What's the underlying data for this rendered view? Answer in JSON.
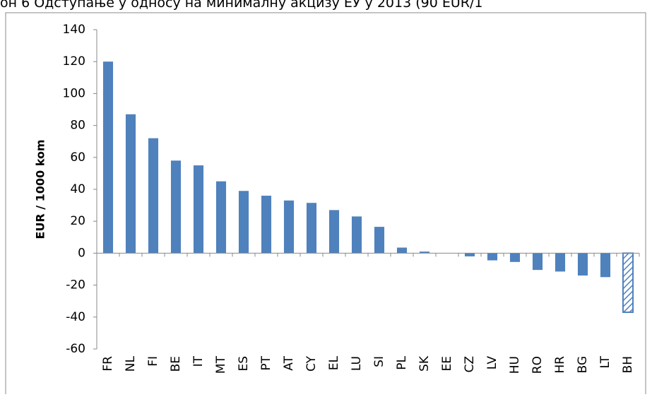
{
  "chart_data": {
    "type": "bar",
    "title": "он 6 Одступање у односу на минималну акцизу ЕУ у 2013 (90 EUR/1",
    "y_label": "EUR / 1000 kom",
    "categories": [
      "FR",
      "NL",
      "FI",
      "BE",
      "IT",
      "MT",
      "ES",
      "PT",
      "AT",
      "CY",
      "EL",
      "LU",
      "SI",
      "PL",
      "SK",
      "EE",
      "CZ",
      "LV",
      "HU",
      "RO",
      "HR",
      "BG",
      "LT",
      "BH"
    ],
    "values": [
      120,
      87,
      72,
      58,
      55,
      45,
      39,
      36,
      33,
      31.5,
      27,
      23,
      16.5,
      3.5,
      1,
      0,
      -2,
      -4.5,
      -5.5,
      -10.5,
      -11.5,
      -14,
      -15,
      -37
    ],
    "color": "#4f81bd",
    "hatched": "BH",
    "ylim": [
      -60,
      140
    ],
    "yticks": [
      -60,
      -40,
      -20,
      0,
      20,
      40,
      60,
      80,
      100,
      120,
      140
    ],
    "grid": false
  }
}
